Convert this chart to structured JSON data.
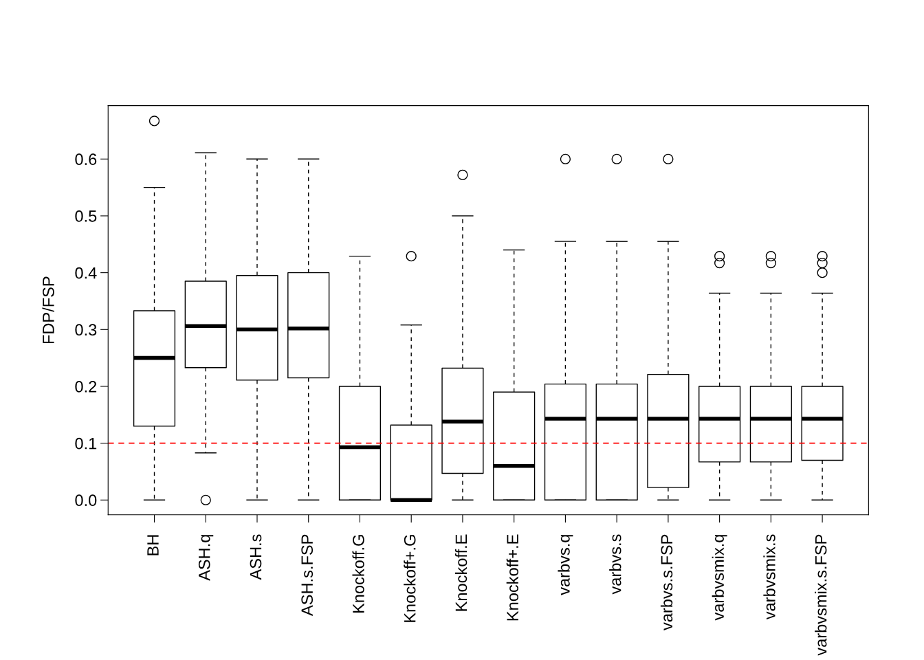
{
  "chart_data": {
    "type": "box",
    "ylabel": "FDP/FSP",
    "categories": [
      "BH",
      "ASH.q",
      "ASH.s",
      "ASH.s.FSP",
      "Knockoff.G",
      "Knockoff+.G",
      "Knockoff.E",
      "Knockoff+.E",
      "varbvs.q",
      "varbvs.s",
      "varbvs.s.FSP",
      "varbvsmix.q",
      "varbvsmix.s",
      "varbvsmix.s.FSP"
    ],
    "boxes": [
      {
        "low": 0,
        "q1": 0.13,
        "median": 0.25,
        "q3": 0.333,
        "high": 0.55,
        "outliers": [
          0.667
        ]
      },
      {
        "low": 0.083,
        "q1": 0.233,
        "median": 0.306,
        "q3": 0.385,
        "high": 0.611,
        "outliers": [
          0
        ]
      },
      {
        "low": 0,
        "q1": 0.211,
        "median": 0.3,
        "q3": 0.395,
        "high": 0.6
      },
      {
        "low": 0,
        "q1": 0.215,
        "median": 0.302,
        "q3": 0.4,
        "high": 0.6
      },
      {
        "low": 0,
        "q1": 0,
        "median": 0.093,
        "q3": 0.2,
        "high": 0.429
      },
      {
        "low": 0,
        "q1": 0,
        "median": 0,
        "q3": 0.132,
        "high": 0.308,
        "outliers": [
          0.429
        ]
      },
      {
        "low": 0,
        "q1": 0.047,
        "median": 0.138,
        "q3": 0.232,
        "high": 0.5,
        "outliers": [
          0.572
        ]
      },
      {
        "low": 0,
        "q1": 0,
        "median": 0.06,
        "q3": 0.19,
        "high": 0.44
      },
      {
        "low": 0,
        "q1": 0,
        "median": 0.143,
        "q3": 0.204,
        "high": 0.455,
        "outliers": [
          0.6
        ]
      },
      {
        "low": 0,
        "q1": 0,
        "median": 0.143,
        "q3": 0.204,
        "high": 0.455,
        "outliers": [
          0.6
        ]
      },
      {
        "low": 0,
        "q1": 0.022,
        "median": 0.143,
        "q3": 0.221,
        "high": 0.455,
        "outliers": [
          0.6
        ]
      },
      {
        "low": 0,
        "q1": 0.067,
        "median": 0.143,
        "q3": 0.2,
        "high": 0.364,
        "outliers": [
          0.429,
          0.417
        ]
      },
      {
        "low": 0,
        "q1": 0.067,
        "median": 0.143,
        "q3": 0.2,
        "high": 0.364,
        "outliers": [
          0.429,
          0.417
        ]
      },
      {
        "low": 0,
        "q1": 0.07,
        "median": 0.143,
        "q3": 0.2,
        "high": 0.364,
        "outliers": [
          0.429,
          0.417,
          0.4
        ]
      }
    ],
    "ylim": [
      -0.026,
      0.694
    ],
    "yticks": [
      {
        "value": 0,
        "label": "0.0"
      },
      0.1,
      0.2,
      0.3,
      0.4,
      0.5,
      0.6
    ],
    "ref_lines": [
      {
        "axis": "y",
        "value": 0.1,
        "label": null,
        "color": "#ff0000",
        "line_style": "dashed"
      }
    ],
    "grid": false,
    "legend": false
  }
}
